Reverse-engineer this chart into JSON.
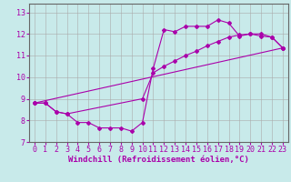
{
  "xlabel": "Windchill (Refroidissement éolien,°C)",
  "bg_color": "#c8eaea",
  "line_color": "#aa00aa",
  "grid_color": "#aaaaaa",
  "xlim": [
    -0.5,
    23.5
  ],
  "ylim": [
    7,
    13.4
  ],
  "yticks": [
    7,
    8,
    9,
    10,
    11,
    12,
    13
  ],
  "xticks": [
    0,
    1,
    2,
    3,
    4,
    5,
    6,
    7,
    8,
    9,
    10,
    11,
    12,
    13,
    14,
    15,
    16,
    17,
    18,
    19,
    20,
    21,
    22,
    23
  ],
  "series1_x": [
    0,
    1,
    2,
    3,
    4,
    5,
    6,
    7,
    8,
    9,
    10,
    11,
    12,
    13,
    14,
    15,
    16,
    17,
    18,
    19,
    20,
    21,
    22,
    23
  ],
  "series1_y": [
    8.8,
    8.8,
    8.4,
    8.3,
    7.9,
    7.9,
    7.65,
    7.65,
    7.65,
    7.5,
    7.9,
    10.4,
    12.2,
    12.1,
    12.35,
    12.35,
    12.35,
    12.65,
    12.5,
    11.9,
    12.0,
    11.9,
    11.85,
    11.35
  ],
  "series2_x": [
    0,
    1,
    2,
    3,
    10,
    11,
    12,
    13,
    14,
    15,
    16,
    17,
    18,
    19,
    20,
    21,
    22,
    23
  ],
  "series2_y": [
    8.8,
    8.8,
    8.4,
    8.3,
    9.0,
    10.2,
    10.5,
    10.75,
    11.0,
    11.2,
    11.45,
    11.65,
    11.85,
    11.95,
    12.0,
    12.0,
    11.85,
    11.35
  ],
  "series3_x": [
    0,
    23
  ],
  "series3_y": [
    8.8,
    11.35
  ],
  "font_size_xlabel": 6.5,
  "font_size_ticks": 6.0
}
